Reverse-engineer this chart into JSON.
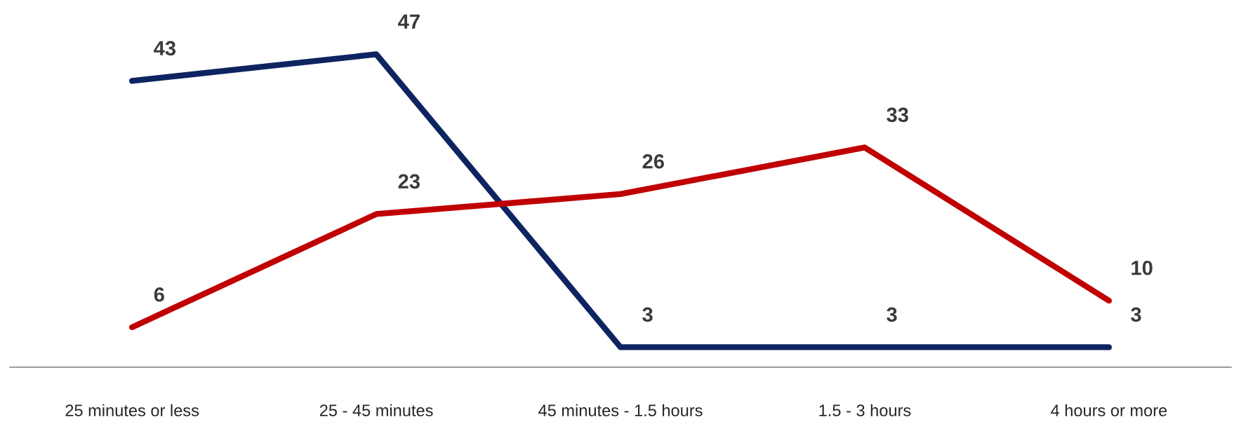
{
  "chart_data": {
    "type": "line",
    "categories": [
      "25 minutes or less",
      "25 - 45 minutes",
      "45 minutes - 1.5 hours",
      "1.5 - 3 hours",
      "4 hours or more"
    ],
    "series": [
      {
        "color": "#0d2461",
        "values": [
          43,
          47,
          3,
          3,
          3
        ]
      },
      {
        "color": "#c00000",
        "values": [
          6,
          23,
          26,
          33,
          10
        ]
      }
    ],
    "data_labels": true,
    "grid": false,
    "legend": false,
    "marker": "none",
    "line_style": "solid",
    "tick_labels": "x"
  }
}
